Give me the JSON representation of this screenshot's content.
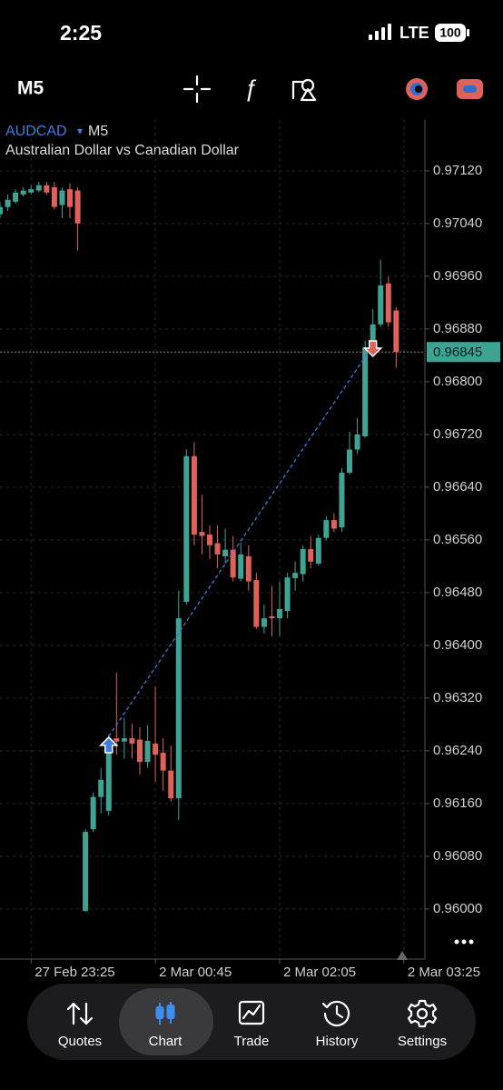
{
  "status_bar": {
    "time": "2:25",
    "network": "LTE",
    "battery": "100"
  },
  "toolbar": {
    "timeframe": "M5"
  },
  "chart_data": {
    "type": "candlestick",
    "symbol": "AUDCAD",
    "timeframe": "M5",
    "subtitle": "Australian Dollar vs Canadian Dollar",
    "up_color": "#3fa393",
    "down_color": "#e0605a",
    "x": [
      0,
      1,
      2,
      3,
      4,
      5,
      6,
      7,
      8,
      9,
      10,
      11,
      12,
      13,
      14,
      15,
      16,
      17,
      18,
      19,
      20,
      21,
      22,
      23,
      24,
      25,
      26,
      27,
      28,
      29,
      30,
      31,
      32,
      33,
      34,
      35,
      36,
      37,
      38,
      39,
      40,
      41,
      42,
      43,
      44,
      45,
      46,
      47,
      48,
      49,
      50,
      51
    ],
    "open": [
      0.97054,
      0.97065,
      0.97073,
      0.97084,
      0.97087,
      0.9709,
      0.97098,
      0.97095,
      0.97068,
      0.97092,
      0.9709,
      0.95997,
      0.96121,
      0.9617,
      0.96149,
      0.96259,
      0.96254,
      0.96259,
      0.96257,
      0.96223,
      0.96251,
      0.96237,
      0.9621,
      0.96168,
      0.96466,
      0.96687,
      0.96572,
      0.96568,
      0.96555,
      0.96535,
      0.96545,
      0.96501,
      0.96535,
      0.96499,
      0.96428,
      0.96444,
      0.96441,
      0.96452,
      0.96502,
      0.96508,
      0.96546,
      0.96524,
      0.96563,
      0.9659,
      0.96579,
      0.96662,
      0.96697,
      0.96717,
      0.96852,
      0.96887,
      0.96949,
      0.96908
    ],
    "high": [
      0.97073,
      0.97084,
      0.97092,
      0.97095,
      0.97098,
      0.97103,
      0.97103,
      0.97103,
      0.97095,
      0.97101,
      0.97095,
      0.96121,
      0.96177,
      0.96214,
      0.96265,
      0.96359,
      0.9629,
      0.96281,
      0.96276,
      0.96279,
      0.96337,
      0.96259,
      0.96248,
      0.96483,
      0.96697,
      0.96708,
      0.96628,
      0.96582,
      0.96582,
      0.96577,
      0.96566,
      0.96556,
      0.96552,
      0.9651,
      0.96462,
      0.9649,
      0.96497,
      0.9651,
      0.96527,
      0.96552,
      0.96566,
      0.96568,
      0.96596,
      0.966,
      0.96669,
      0.96724,
      0.96745,
      0.96862,
      0.9691,
      0.96985,
      0.96959,
      0.96913
    ],
    "low": [
      0.97048,
      0.97059,
      0.9707,
      0.97081,
      0.97084,
      0.97087,
      0.97084,
      0.97062,
      0.97048,
      0.97048,
      0.96999,
      0.95996,
      0.96117,
      0.96145,
      0.96142,
      0.96234,
      0.96228,
      0.96228,
      0.96204,
      0.96214,
      0.96193,
      0.96179,
      0.96163,
      0.96135,
      0.96462,
      0.96552,
      0.96538,
      0.96531,
      0.96517,
      0.96524,
      0.96497,
      0.96497,
      0.96483,
      0.96425,
      0.96418,
      0.96414,
      0.96414,
      0.96441,
      0.96483,
      0.96497,
      0.96517,
      0.96521,
      0.96559,
      0.96572,
      0.96572,
      0.96659,
      0.9669,
      0.96715,
      0.96841,
      0.96883,
      0.96883,
      0.96821
    ],
    "close": [
      0.97065,
      0.97076,
      0.97087,
      0.9709,
      0.97092,
      0.97098,
      0.97087,
      0.97065,
      0.9709,
      0.97065,
      0.9704,
      0.96117,
      0.9617,
      0.96196,
      0.96259,
      0.96254,
      0.96259,
      0.96251,
      0.96223,
      0.96255,
      0.96234,
      0.9621,
      0.96168,
      0.96441,
      0.96687,
      0.96568,
      0.96566,
      0.96552,
      0.96538,
      0.96545,
      0.96503,
      0.96538,
      0.96497,
      0.96428,
      0.96441,
      0.96441,
      0.96455,
      0.96503,
      0.9651,
      0.96546,
      0.96527,
      0.96563,
      0.9659,
      0.96577,
      0.96662,
      0.96697,
      0.9672,
      0.96852,
      0.96887,
      0.96946,
      0.9689,
      0.96845
    ],
    "xlim": [
      0,
      54.7
    ],
    "xticks": [
      {
        "value": 4,
        "label": "27 Feb 23:25"
      },
      {
        "value": 20,
        "label": "2 Mar 00:45"
      },
      {
        "value": 36,
        "label": "2 Mar 02:05"
      },
      {
        "value": 52,
        "label": "2 Mar 03:25"
      }
    ],
    "ylim": [
      0.95924,
      0.97197
    ],
    "yticks": [
      {
        "value": 0.9712,
        "label": "0.97120"
      },
      {
        "value": 0.9704,
        "label": "0.97040"
      },
      {
        "value": 0.9696,
        "label": "0.96960"
      },
      {
        "value": 0.9688,
        "label": "0.96880"
      },
      {
        "value": 0.968,
        "label": "0.96800"
      },
      {
        "value": 0.9672,
        "label": "0.96720"
      },
      {
        "value": 0.9664,
        "label": "0.96640"
      },
      {
        "value": 0.9656,
        "label": "0.96560"
      },
      {
        "value": 0.9648,
        "label": "0.96480"
      },
      {
        "value": 0.964,
        "label": "0.96400"
      },
      {
        "value": 0.9632,
        "label": "0.96320"
      },
      {
        "value": 0.9624,
        "label": "0.96240"
      },
      {
        "value": 0.9616,
        "label": "0.96160"
      },
      {
        "value": 0.9608,
        "label": "0.96080"
      },
      {
        "value": 0.96,
        "label": "0.96000"
      }
    ],
    "grid": true,
    "current_price": 0.96845,
    "buy": {
      "x": 14,
      "price": 0.96262
    },
    "sell": {
      "x": 48,
      "price": 0.96855
    }
  },
  "nav": {
    "items": [
      "Quotes",
      "Chart",
      "Trade",
      "History",
      "Settings"
    ],
    "active": 1
  }
}
